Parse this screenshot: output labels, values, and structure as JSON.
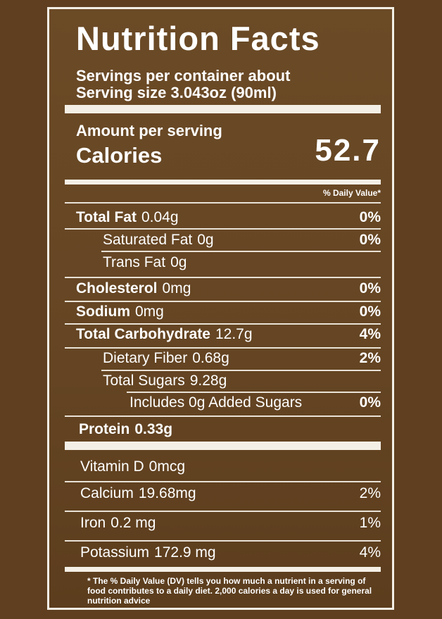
{
  "title": "Nutrition Facts",
  "servings_per_container": "Servings per container about",
  "serving_size": "Serving size 3.043oz (90ml)",
  "amount_per_serving": "Amount per serving",
  "calories_label": "Calories",
  "calories_value": "52.7",
  "daily_value_header": "% Daily Value*",
  "nutrients": [
    {
      "name": "Total Fat",
      "amount": "0.04g",
      "dv": "0%"
    },
    {
      "name": "Saturated Fat",
      "amount": "0g",
      "dv": "0%"
    },
    {
      "name": "Trans Fat",
      "amount": "0g",
      "dv": ""
    },
    {
      "name": "Cholesterol",
      "amount": "0mg",
      "dv": "0%"
    },
    {
      "name": "Sodium",
      "amount": "0mg",
      "dv": "0%"
    },
    {
      "name": "Total Carbohydrate",
      "amount": "12.7g",
      "dv": "4%"
    },
    {
      "name": "Dietary Fiber",
      "amount": "0.68g",
      "dv": "2%"
    },
    {
      "name": "Total Sugars",
      "amount": "9.28g",
      "dv": ""
    },
    {
      "name": "Includes 0g Added Sugars",
      "amount": "",
      "dv": "0%"
    },
    {
      "name": "Protein",
      "amount": "0.33g",
      "dv": ""
    }
  ],
  "vitamins": [
    {
      "name": "Vitamin D",
      "amount": "0mcg",
      "dv": ""
    },
    {
      "name": "Calcium",
      "amount": "19.68mg",
      "dv": "2%"
    },
    {
      "name": "Iron",
      "amount": "0.2 mg",
      "dv": "1%"
    },
    {
      "name": "Potassium",
      "amount": "172.9 mg",
      "dv": "4%"
    }
  ],
  "footnote": "* The % Daily Value (DV) tells you how much a nutrient in a serving of food contributes to a daily diet. 2,000 calories a day is used for general nutrition advice"
}
